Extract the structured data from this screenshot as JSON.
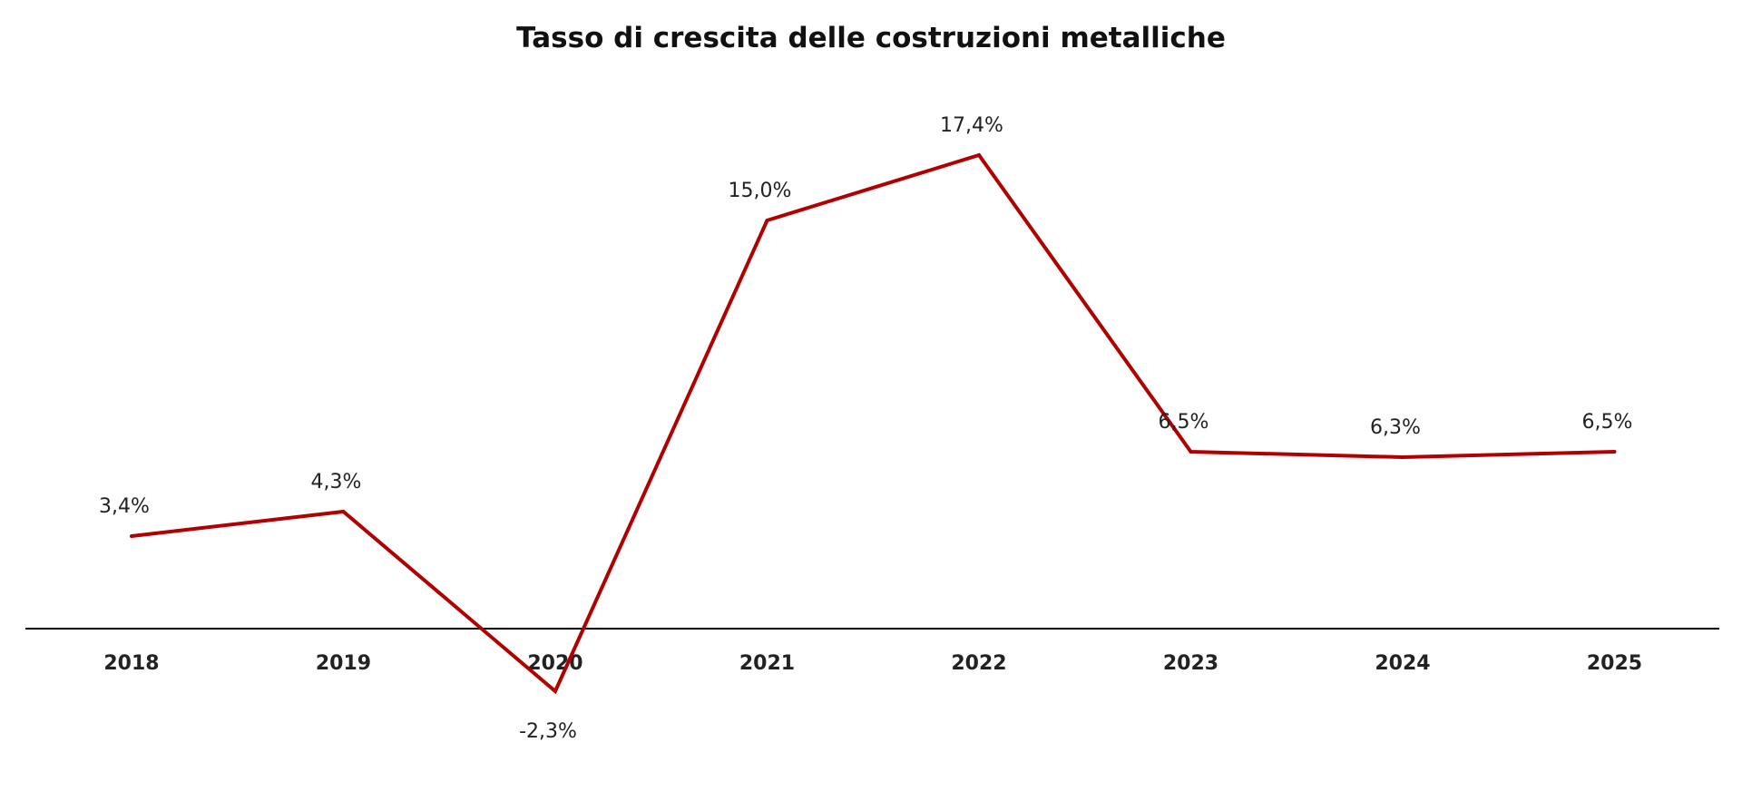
{
  "chart_data": {
    "type": "line",
    "title": "Tasso di crescita delle costruzioni metalliche",
    "xlabel": "",
    "ylabel": "",
    "categories": [
      "2018",
      "2019",
      "2020",
      "2021",
      "2022",
      "2023",
      "2024",
      "2025"
    ],
    "series": [
      {
        "values": [
          3.4,
          4.3,
          -2.3,
          15.0,
          17.4,
          6.5,
          6.3,
          6.5
        ],
        "color": "#b00000"
      }
    ],
    "data_labels": [
      "3,4%",
      "4,3%",
      "-2,3%",
      "15,0%",
      "17,4%",
      "6,5%",
      "6,3%",
      "6,5%"
    ],
    "negative_label_color": "#ff0000",
    "label_color": "#222222",
    "axis_color": "#000000",
    "grid": false,
    "legend": "none"
  }
}
